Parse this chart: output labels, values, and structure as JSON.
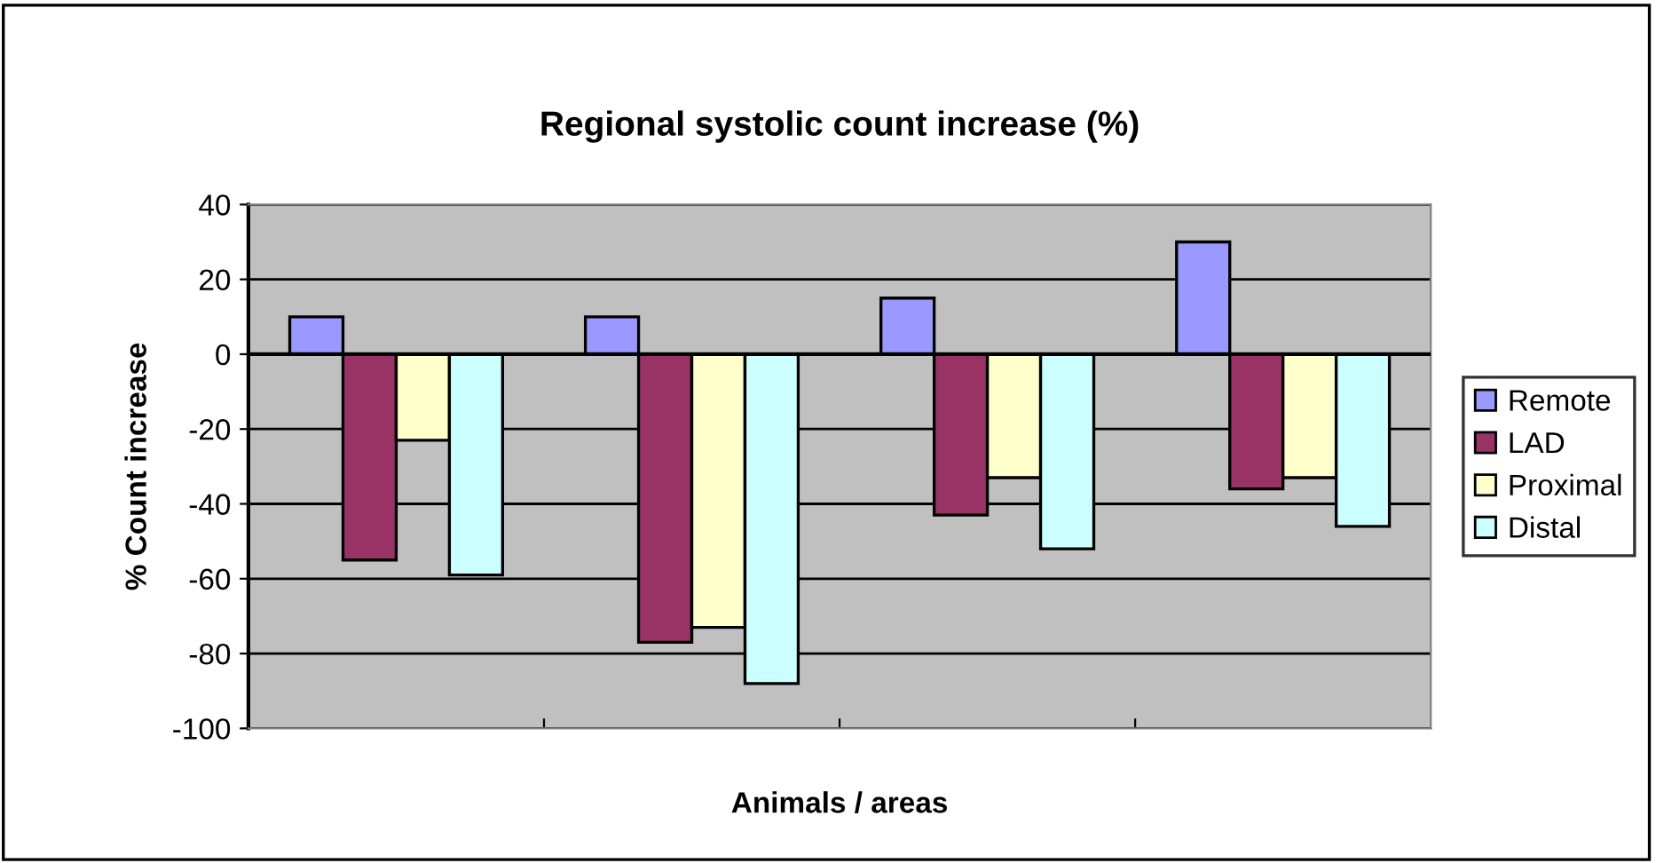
{
  "chart_data": {
    "type": "bar",
    "title": "Regional systolic count increase (%)",
    "xlabel": "Animals / areas",
    "ylabel": "% Count increase",
    "categories": [
      null,
      null,
      null,
      null
    ],
    "series": [
      {
        "name": "Remote",
        "color": "#9999ff",
        "values": [
          10,
          10,
          15,
          30
        ]
      },
      {
        "name": "LAD",
        "color": "#993366",
        "values": [
          -55,
          -77,
          -43,
          -36
        ]
      },
      {
        "name": "Proximal",
        "color": "#ffffcc",
        "values": [
          -23,
          -73,
          -33,
          -33
        ]
      },
      {
        "name": "Distal",
        "color": "#ccffff",
        "values": [
          -59,
          -88,
          -52,
          -46
        ]
      }
    ],
    "ylim": [
      -100,
      40
    ],
    "yticks": [
      -100,
      -80,
      -60,
      -40,
      -20,
      0,
      20,
      40
    ],
    "grid": "y",
    "legend": "right"
  }
}
